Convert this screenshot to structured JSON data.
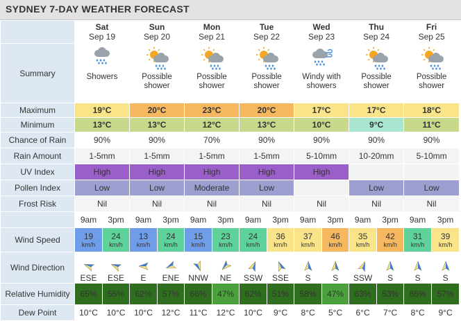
{
  "title": "SYDNEY 7-DAY WEATHER FORECAST",
  "labels": {
    "summary": "Summary",
    "maximum": "Maximum",
    "minimum": "Minimum",
    "chance_of_rain": "Chance of Rain",
    "rain_amount": "Rain Amount",
    "uv_index": "UV Index",
    "pollen_index": "Pollen Index",
    "frost_risk": "Frost Risk",
    "wind_speed": "Wind Speed",
    "wind_direction": "Wind Direction",
    "relative_humidity": "Relative Humidity",
    "dew_point": "Dew Point"
  },
  "wind_unit": "km/h",
  "times": [
    "9am",
    "3pm"
  ],
  "days": [
    {
      "name": "Sat",
      "date": "Sep 19",
      "icon": "showers-icon",
      "summary": "Showers",
      "max": "19°C",
      "max_color": "#f9e48a",
      "min": "13°C",
      "min_color": "#c8d98c",
      "rain_chance": "90%",
      "rain_amount": "1-5mm",
      "uv": "High",
      "pollen": "Low",
      "frost": "Nil",
      "wind": [
        {
          "speed": "19",
          "color": "#6f9de8",
          "dir": "ESE",
          "deg": 112
        },
        {
          "speed": "24",
          "color": "#5fd19a",
          "dir": "ESE",
          "deg": 112
        }
      ],
      "humidity": [
        {
          "v": "65%",
          "color": "#2f6e1e"
        },
        {
          "v": "55%",
          "color": "#2f6e1e"
        }
      ],
      "dew": [
        "10°C",
        "10°C"
      ]
    },
    {
      "name": "Sun",
      "date": "Sep 20",
      "icon": "possible-shower-icon",
      "summary": "Possible shower",
      "max": "20°C",
      "max_color": "#f5b860",
      "min": "13°C",
      "min_color": "#c8d98c",
      "rain_chance": "90%",
      "rain_amount": "1-5mm",
      "uv": "High",
      "pollen": "Low",
      "frost": "Nil",
      "wind": [
        {
          "speed": "13",
          "color": "#6f9de8",
          "dir": "E",
          "deg": 90
        },
        {
          "speed": "24",
          "color": "#5fd19a",
          "dir": "ENE",
          "deg": 68
        }
      ],
      "humidity": [
        {
          "v": "62%",
          "color": "#2f6e1e"
        },
        {
          "v": "57%",
          "color": "#2f6e1e"
        }
      ],
      "dew": [
        "10°C",
        "12°C"
      ]
    },
    {
      "name": "Mon",
      "date": "Sep 21",
      "icon": "possible-shower-icon",
      "summary": "Possible shower",
      "max": "23°C",
      "max_color": "#f5b860",
      "min": "12°C",
      "min_color": "#c8d98c",
      "rain_chance": "70%",
      "rain_amount": "1-5mm",
      "uv": "High",
      "pollen": "Moderate",
      "frost": "Nil",
      "wind": [
        {
          "speed": "15",
          "color": "#6f9de8",
          "dir": "NNW",
          "deg": 338
        },
        {
          "speed": "23",
          "color": "#5fd19a",
          "dir": "NE",
          "deg": 45
        }
      ],
      "humidity": [
        {
          "v": "66%",
          "color": "#2f6e1e"
        },
        {
          "v": "47%",
          "color": "#4aa03a"
        }
      ],
      "dew": [
        "11°C",
        "12°C"
      ]
    },
    {
      "name": "Tue",
      "date": "Sep 22",
      "icon": "possible-shower-icon",
      "summary": "Possible shower",
      "max": "20°C",
      "max_color": "#f5b860",
      "min": "13°C",
      "min_color": "#c8d98c",
      "rain_chance": "90%",
      "rain_amount": "1-5mm",
      "uv": "High",
      "pollen": "Low",
      "frost": "Nil",
      "wind": [
        {
          "speed": "24",
          "color": "#5fd19a",
          "dir": "SSW",
          "deg": 202
        },
        {
          "speed": "36",
          "color": "#f9e48a",
          "dir": "SSE",
          "deg": 158
        }
      ],
      "humidity": [
        {
          "v": "62%",
          "color": "#2f6e1e"
        },
        {
          "v": "51%",
          "color": "#2f6e1e"
        }
      ],
      "dew": [
        "10°C",
        "9°C"
      ]
    },
    {
      "name": "Wed",
      "date": "Sep 23",
      "icon": "windy-showers-icon",
      "summary": "Windy with showers",
      "max": "17°C",
      "max_color": "#f9e48a",
      "min": "10°C",
      "min_color": "#c8d98c",
      "rain_chance": "90%",
      "rain_amount": "5-10mm",
      "uv": "High",
      "pollen": "",
      "frost": "Nil",
      "wind": [
        {
          "speed": "37",
          "color": "#f9e48a",
          "dir": "S",
          "deg": 180
        },
        {
          "speed": "46",
          "color": "#f5b860",
          "dir": "S",
          "deg": 180
        }
      ],
      "humidity": [
        {
          "v": "58%",
          "color": "#2f6e1e"
        },
        {
          "v": "47%",
          "color": "#4aa03a"
        }
      ],
      "dew": [
        "8°C",
        "5°C"
      ]
    },
    {
      "name": "Thu",
      "date": "Sep 24",
      "icon": "possible-shower-icon",
      "summary": "Possible shower",
      "max": "17°C",
      "max_color": "#f9e48a",
      "min": "9°C",
      "min_color": "#a8e6cf",
      "rain_chance": "90%",
      "rain_amount": "10-20mm",
      "uv": "",
      "pollen": "Low",
      "frost": "Nil",
      "wind": [
        {
          "speed": "35",
          "color": "#f9e48a",
          "dir": "SSW",
          "deg": 202
        },
        {
          "speed": "42",
          "color": "#f5b860",
          "dir": "S",
          "deg": 180
        }
      ],
      "humidity": [
        {
          "v": "63%",
          "color": "#2f6e1e"
        },
        {
          "v": "53%",
          "color": "#2f6e1e"
        }
      ],
      "dew": [
        "6°C",
        "7°C"
      ]
    },
    {
      "name": "Fri",
      "date": "Sep 25",
      "icon": "possible-shower-icon",
      "summary": "Possible shower",
      "max": "18°C",
      "max_color": "#f9e48a",
      "min": "11°C",
      "min_color": "#c8d98c",
      "rain_chance": "90%",
      "rain_amount": "5-10mm",
      "uv": "",
      "pollen": "Low",
      "frost": "Nil",
      "wind": [
        {
          "speed": "31",
          "color": "#5fd19a",
          "dir": "S",
          "deg": 180
        },
        {
          "speed": "39",
          "color": "#f9e48a",
          "dir": "S",
          "deg": 180
        }
      ],
      "humidity": [
        {
          "v": "66%",
          "color": "#2f6e1e"
        },
        {
          "v": "57%",
          "color": "#2f6e1e"
        }
      ],
      "dew": [
        "8°C",
        "9°C"
      ]
    }
  ]
}
